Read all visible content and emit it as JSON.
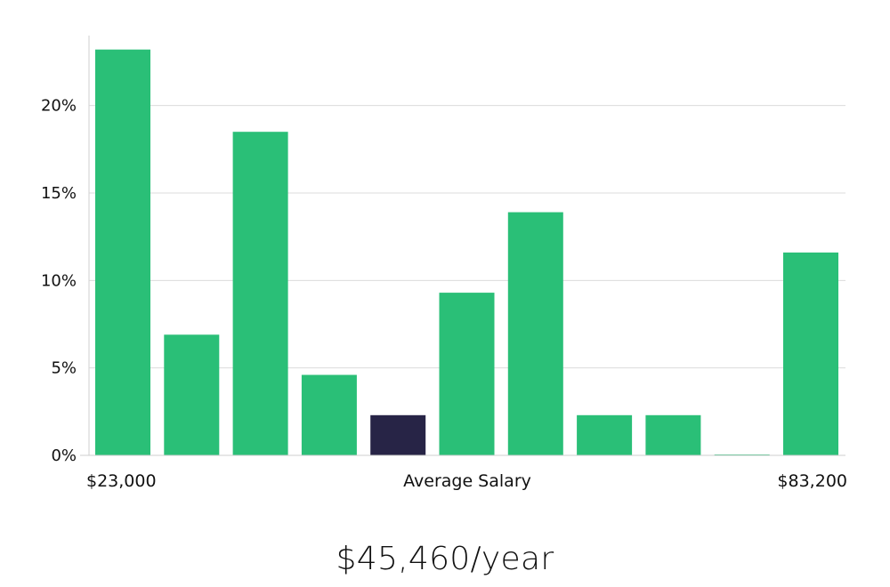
{
  "chart_data": {
    "type": "bar",
    "y_unit": "%",
    "ylim": [
      0,
      24
    ],
    "y_ticks": [
      0,
      5,
      10,
      15,
      20
    ],
    "y_tick_labels": [
      "0%",
      "5%",
      "10%",
      "15%",
      "20%"
    ],
    "values": [
      23.2,
      6.9,
      18.5,
      4.6,
      2.3,
      9.3,
      13.9,
      2.3,
      2.3,
      0.05,
      11.6
    ],
    "highlight_index": 4,
    "x_labels": {
      "left": "$23,000",
      "center": "Average Salary",
      "right": "$83,200"
    },
    "grid": true,
    "colors": {
      "bar": "#2abf77",
      "highlight": "#272446",
      "grid": "#dcdcdc",
      "axis": "#cfcfcf"
    }
  },
  "summary": {
    "average_salary": "$45,460/year"
  }
}
